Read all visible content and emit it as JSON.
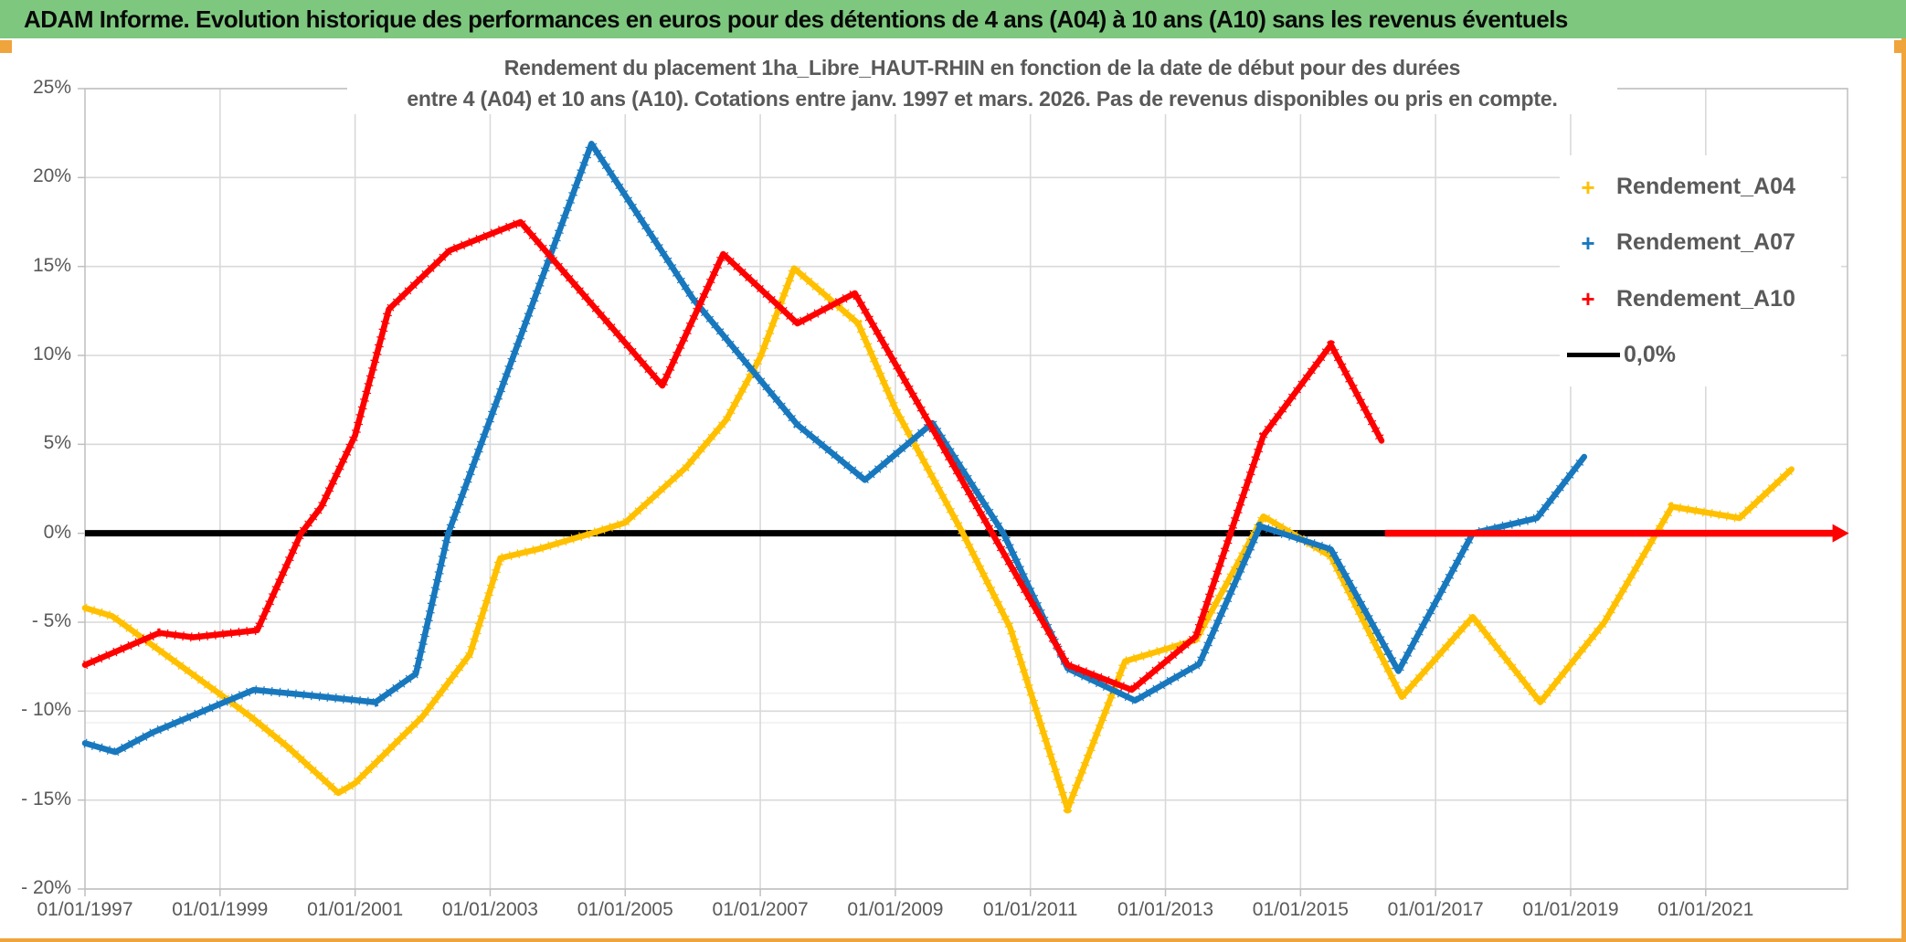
{
  "window": {
    "title": "ADAM Informe. Evolution historique des performances en euros pour des détentions de 4 ans (A04) à 10 ans (A10) sans les revenus éventuels"
  },
  "header": {
    "bg": "#7dc87e"
  },
  "handles_color": "#f0a43c",
  "chart": {
    "title_line1": "Rendement du placement 1ha_Libre_HAUT-RHIN en fonction de la date de début pour des durées",
    "title_line2": "entre 4 (A04) et 10 ans (A10). Cotations entre janv. 1997 et mars. 2026. Pas de revenus disponibles ou pris en compte.",
    "text_color": "#595959",
    "gridline_color": "#d9d9d9",
    "border_color": "#bfbfbf",
    "legend": {
      "items": [
        {
          "label": "Rendement_A04",
          "marker": "plus",
          "color": "#FFC000"
        },
        {
          "label": "Rendement_A07",
          "marker": "plus",
          "color": "#1878BE"
        },
        {
          "label": "Rendement_A10",
          "marker": "plus",
          "color": "#FF0000"
        },
        {
          "label": "0,0%",
          "marker": "line",
          "color": "#000000"
        }
      ]
    }
  },
  "chart_data": {
    "type": "line",
    "title": "Rendement du placement 1ha_Libre_HAUT-RHIN en fonction de la date de début pour des durées entre 4 (A04) et 10 ans (A10). Cotations entre janv. 1997 et mars. 2026. Pas de revenus disponibles ou pris en compte.",
    "unit": "%",
    "grid": true,
    "legend_position": "right",
    "x_axis": {
      "min": 1997.0,
      "max": 2023.1,
      "tick_years": [
        1997,
        1999,
        2001,
        2003,
        2005,
        2007,
        2009,
        2011,
        2013,
        2015,
        2017,
        2019,
        2021
      ],
      "tick_labels": [
        "01/01/1997",
        "01/01/1999",
        "01/01/2001",
        "01/01/2003",
        "01/01/2005",
        "01/01/2007",
        "01/01/2009",
        "01/01/2011",
        "01/01/2013",
        "01/01/2015",
        "01/01/2017",
        "01/01/2019",
        "01/01/2021"
      ]
    },
    "y_axis": {
      "min": -20,
      "max": 25,
      "step": 5,
      "gridline_values": [
        25,
        20,
        15,
        10,
        5,
        0,
        -5,
        -10,
        -15,
        -20
      ],
      "labels": [
        "25%",
        "20%",
        "15%",
        "10%",
        "5%",
        "0%",
        "- 5%",
        "- 10%",
        "- 15%",
        "- 20%"
      ],
      "extra_gridlines": [
        -9.0,
        -10.65
      ]
    },
    "zero_line": {
      "label": "0,0%",
      "color": "#000000",
      "x_start": 1997.0,
      "x_end": 2023.0,
      "value": 0
    },
    "series": [
      {
        "name": "Rendement_A04",
        "color": "#FFC000",
        "points": [
          [
            1997.0,
            -4.2
          ],
          [
            1997.4,
            -4.65
          ],
          [
            1998.0,
            -6.3
          ],
          [
            1999.0,
            -9.05
          ],
          [
            1999.45,
            -10.3
          ],
          [
            2000.0,
            -12.0
          ],
          [
            2000.75,
            -14.6
          ],
          [
            2001.0,
            -14.05
          ],
          [
            2002.0,
            -10.3
          ],
          [
            2002.7,
            -6.8
          ],
          [
            2003.15,
            -1.4
          ],
          [
            2003.7,
            -0.9
          ],
          [
            2004.5,
            0.0
          ],
          [
            2005.0,
            0.6
          ],
          [
            2005.9,
            3.7
          ],
          [
            2006.5,
            6.4
          ],
          [
            2007.0,
            9.9
          ],
          [
            2007.5,
            14.9
          ],
          [
            2008.45,
            11.8
          ],
          [
            2009.0,
            7.0
          ],
          [
            2010.0,
            0.0
          ],
          [
            2010.7,
            -5.3
          ],
          [
            2011.55,
            -15.5
          ],
          [
            2012.4,
            -7.2
          ],
          [
            2013.45,
            -6.0
          ],
          [
            2014.45,
            0.95
          ],
          [
            2015.45,
            -1.3
          ],
          [
            2016.5,
            -9.2
          ],
          [
            2017.55,
            -4.7
          ],
          [
            2018.55,
            -9.5
          ],
          [
            2019.5,
            -5.0
          ],
          [
            2020.5,
            1.5
          ],
          [
            2021.5,
            0.85
          ],
          [
            2022.27,
            3.6
          ]
        ]
      },
      {
        "name": "Rendement_A07",
        "color": "#1878BE",
        "points": [
          [
            1997.0,
            -11.8
          ],
          [
            1997.45,
            -12.3
          ],
          [
            1998.0,
            -11.2
          ],
          [
            1999.0,
            -9.6
          ],
          [
            1999.5,
            -8.8
          ],
          [
            2000.3,
            -9.1
          ],
          [
            2001.3,
            -9.5
          ],
          [
            2001.9,
            -7.9
          ],
          [
            2002.38,
            0.0
          ],
          [
            2004.5,
            21.9
          ],
          [
            2006.0,
            13.2
          ],
          [
            2007.55,
            6.1
          ],
          [
            2008.55,
            3.0
          ],
          [
            2009.55,
            6.2
          ],
          [
            2010.6,
            0.0
          ],
          [
            2011.55,
            -7.6
          ],
          [
            2012.55,
            -9.4
          ],
          [
            2013.5,
            -7.35
          ],
          [
            2014.4,
            0.4
          ],
          [
            2015.45,
            -0.9
          ],
          [
            2016.45,
            -7.75
          ],
          [
            2017.55,
            0.0
          ],
          [
            2018.5,
            0.85
          ],
          [
            2019.2,
            4.3
          ]
        ]
      },
      {
        "name": "Rendement_A10",
        "color": "#FF0000",
        "points": [
          [
            1997.0,
            -7.4
          ],
          [
            1998.1,
            -5.6
          ],
          [
            1998.6,
            -5.85
          ],
          [
            1999.55,
            -5.45
          ],
          [
            2000.2,
            0.0
          ],
          [
            2000.5,
            1.5
          ],
          [
            2001.0,
            5.5
          ],
          [
            2001.5,
            12.6
          ],
          [
            2002.4,
            15.9
          ],
          [
            2003.45,
            17.5
          ],
          [
            2005.55,
            8.3
          ],
          [
            2006.45,
            15.7
          ],
          [
            2007.55,
            11.8
          ],
          [
            2008.4,
            13.5
          ],
          [
            2011.55,
            -7.4
          ],
          [
            2012.5,
            -8.8
          ],
          [
            2013.45,
            -5.8
          ],
          [
            2014.45,
            5.5
          ],
          [
            2015.45,
            10.6
          ],
          [
            2016.2,
            5.2
          ]
        ],
        "zero_fill_segment": {
          "x_start": 2016.25,
          "x_end": 2023.0,
          "value": 0,
          "arrow_end": true
        }
      }
    ]
  }
}
